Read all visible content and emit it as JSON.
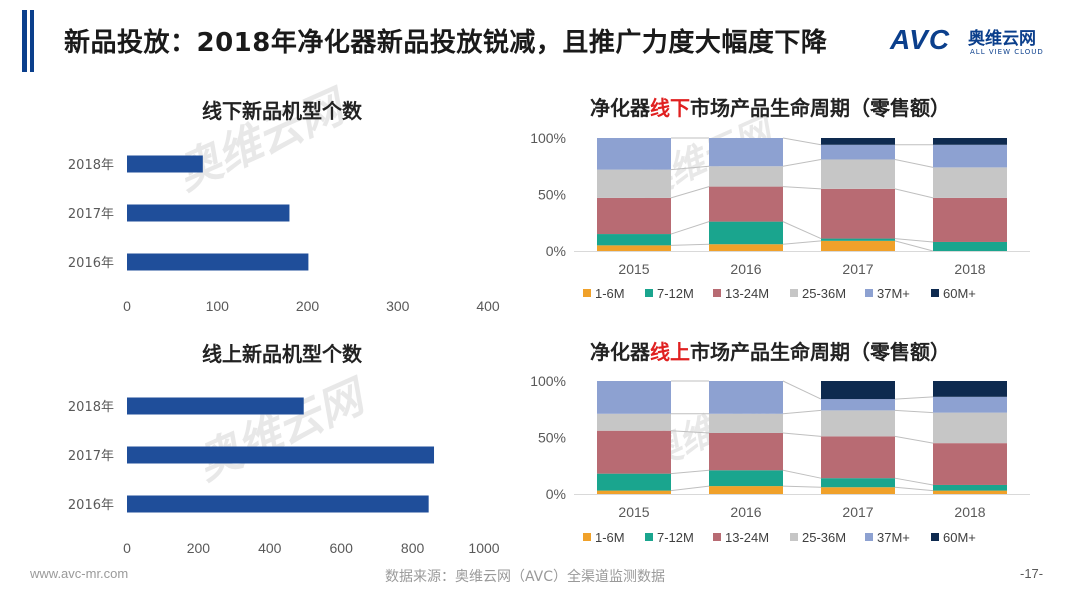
{
  "page": {
    "title": "新品投放：2018年净化器新品投放锐减，且推广力度大幅度下降",
    "logo_text": "AVC",
    "logo_cn": "奥维云网",
    "logo_en": "ALL VIEW CLOUD",
    "watermark_cn": "奥维云网",
    "watermark_en": "ALL VIEW CLOUD",
    "footer_left": "www.avc-mr.com",
    "footer_center": "数据来源：奥维云网（AVC）全渠道监测数据",
    "footer_right": "-17-"
  },
  "colors": {
    "bar_blue": "#1f4e9a",
    "title_accent": "#0b3f8c",
    "highlight": "#e02020",
    "segments": [
      "#f0a12a",
      "#1aa58e",
      "#b86b73",
      "#c6c6c6",
      "#8da1d1",
      "#0e2a4f"
    ]
  },
  "chart_titles": {
    "offline_new": "线下新品机型个数",
    "online_new": "线上新品机型个数",
    "offline_lifecycle_pre": "净化器",
    "offline_lifecycle_hl": "线下",
    "offline_lifecycle_post": "市场产品生命周期（零售额）",
    "online_lifecycle_pre": "净化器",
    "online_lifecycle_hl": "线上",
    "online_lifecycle_post": "市场产品生命周期（零售额）"
  },
  "chart_data": [
    {
      "id": "offline_new",
      "type": "bar",
      "orientation": "horizontal",
      "title": "线下新品机型个数",
      "categories": [
        "2018年",
        "2017年",
        "2016年"
      ],
      "values": [
        84,
        180,
        201
      ],
      "xlim": [
        0,
        400
      ],
      "xticks": [
        0,
        100,
        200,
        300,
        400
      ]
    },
    {
      "id": "online_new",
      "type": "bar",
      "orientation": "horizontal",
      "title": "线上新品机型个数",
      "categories": [
        "2018年",
        "2017年",
        "2016年"
      ],
      "values": [
        495,
        860,
        845
      ],
      "xlim": [
        0,
        1000
      ],
      "xticks": [
        0,
        200,
        400,
        600,
        800,
        1000
      ]
    },
    {
      "id": "offline_lifecycle",
      "type": "bar",
      "stacked": true,
      "percent": true,
      "title": "净化器线下市场产品生命周期（零售额）",
      "categories": [
        "2015",
        "2016",
        "2017",
        "2018"
      ],
      "yticks": [
        "0%",
        "50%",
        "100%"
      ],
      "series": [
        {
          "name": "1-6M",
          "values": [
            5,
            6,
            9,
            0
          ]
        },
        {
          "name": "7-12M",
          "values": [
            10,
            20,
            2,
            8
          ]
        },
        {
          "name": "13-24M",
          "values": [
            32,
            31,
            44,
            39
          ]
        },
        {
          "name": "25-36M",
          "values": [
            25,
            18,
            26,
            27
          ]
        },
        {
          "name": "37M+",
          "values": [
            28,
            25,
            13,
            20
          ]
        },
        {
          "name": "60M+",
          "values": [
            0,
            0,
            6,
            6
          ]
        }
      ],
      "legend_position": "bottom"
    },
    {
      "id": "online_lifecycle",
      "type": "bar",
      "stacked": true,
      "percent": true,
      "title": "净化器线上市场产品生命周期（零售额）",
      "categories": [
        "2015",
        "2016",
        "2017",
        "2018"
      ],
      "yticks": [
        "0%",
        "50%",
        "100%"
      ],
      "series": [
        {
          "name": "1-6M",
          "values": [
            3,
            7,
            6,
            3
          ]
        },
        {
          "name": "7-12M",
          "values": [
            15,
            14,
            8,
            5
          ]
        },
        {
          "name": "13-24M",
          "values": [
            38,
            33,
            37,
            37
          ]
        },
        {
          "name": "25-36M",
          "values": [
            15,
            17,
            23,
            27
          ]
        },
        {
          "name": "37M+",
          "values": [
            29,
            29,
            10,
            14
          ]
        },
        {
          "name": "60M+",
          "values": [
            0,
            0,
            16,
            14
          ]
        }
      ],
      "legend_position": "bottom"
    }
  ]
}
